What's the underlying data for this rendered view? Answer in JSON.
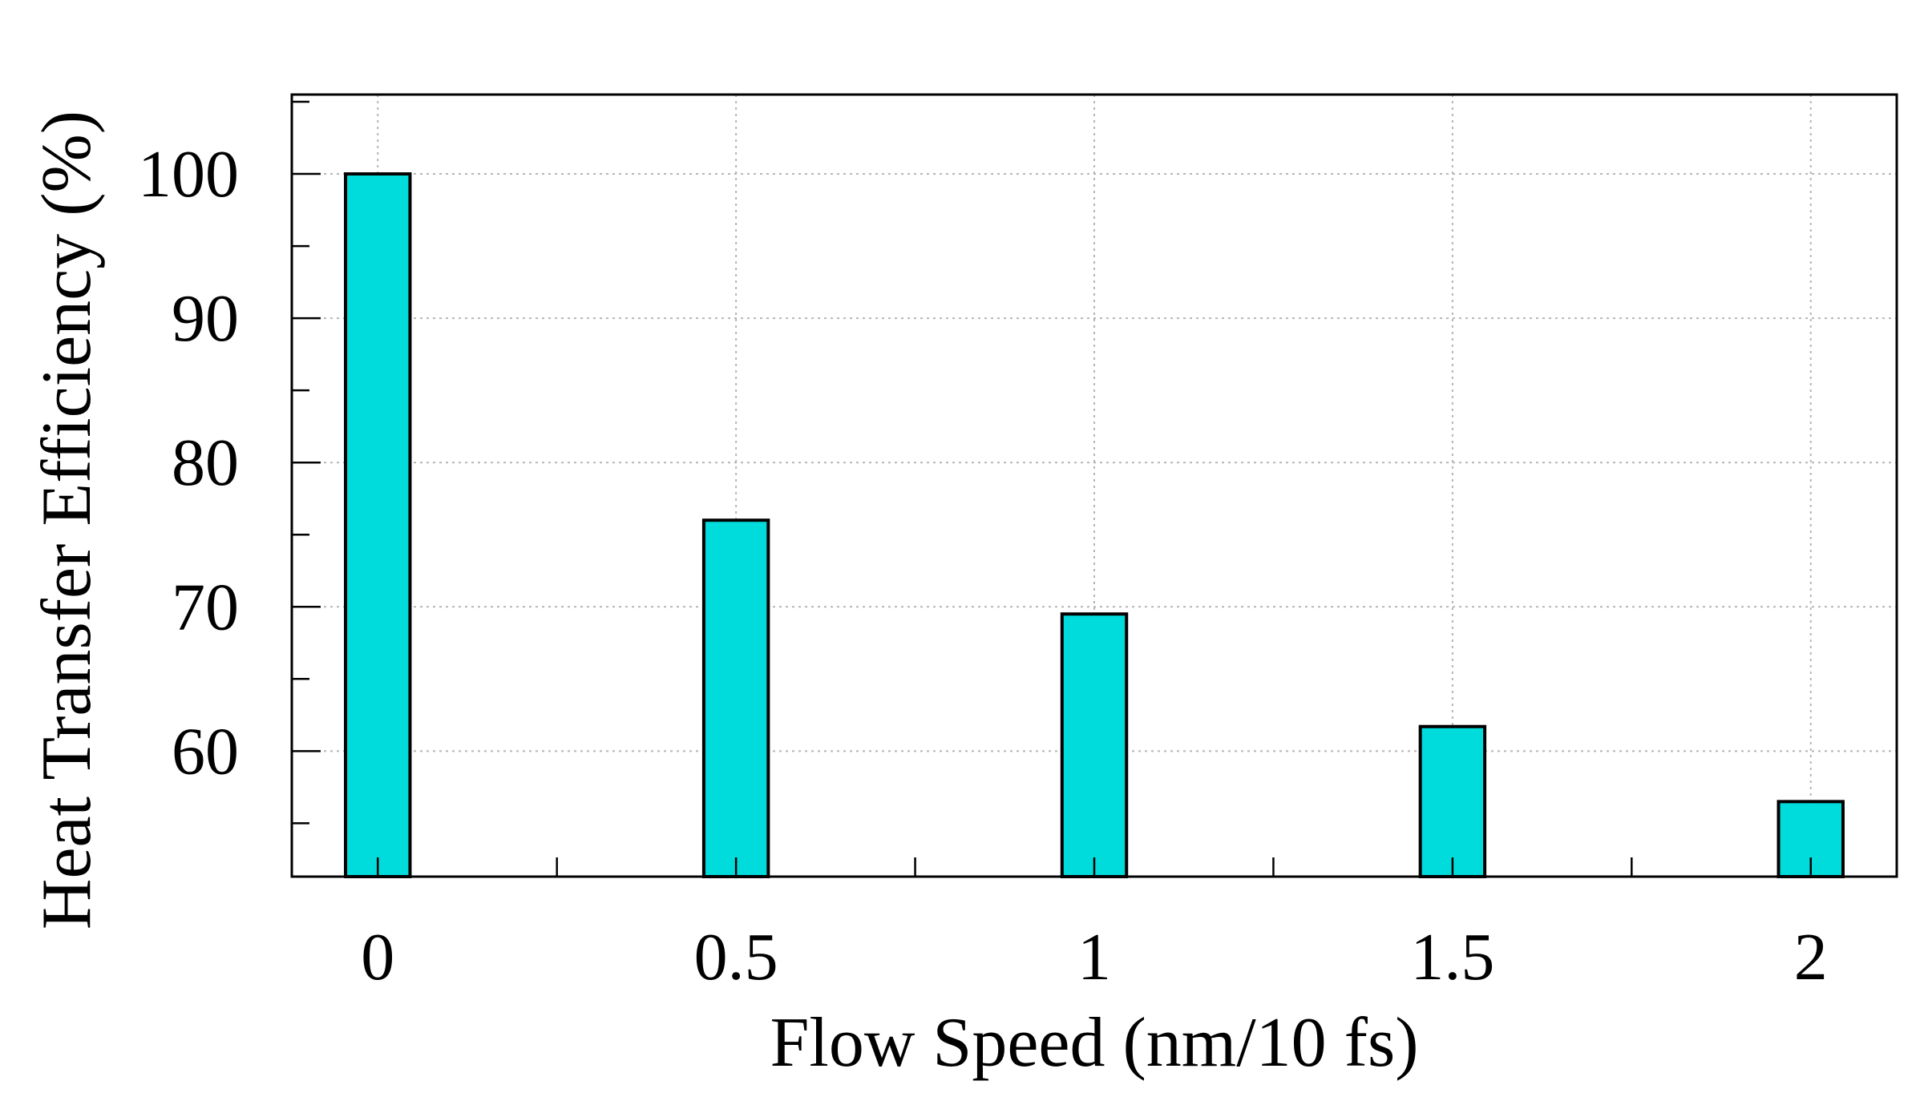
{
  "chart_data": {
    "type": "bar",
    "categories": [
      "0",
      "0.5",
      "1",
      "1.5",
      "2"
    ],
    "x": [
      0,
      0.5,
      1,
      1.5,
      2
    ],
    "values": [
      100,
      76,
      69.5,
      61.7,
      56.5
    ],
    "title": "",
    "xlabel": "Flow Speed (nm/10 fs)",
    "ylabel": "Heat Transfer Efficiency (%)",
    "xlim": [
      -0.12,
      2.12
    ],
    "ylim": [
      51.3,
      105.5
    ],
    "xticks": [
      0,
      0.5,
      1,
      1.5,
      2
    ],
    "xtick_labels": [
      "0",
      "0.5",
      "1",
      "1.5",
      "2"
    ],
    "x_minor_ticks": [
      0.25,
      0.75,
      1.25,
      1.75
    ],
    "yticks": [
      60,
      70,
      80,
      90,
      100
    ],
    "ytick_labels": [
      "60",
      "70",
      "80",
      "90",
      "100"
    ],
    "y_minor_ticks": [
      55,
      65,
      75,
      85,
      95,
      105
    ],
    "bar_width": 0.09,
    "grid": true,
    "legend": "none",
    "bar_color": "#00dcdc",
    "edge_color": "#000000"
  }
}
